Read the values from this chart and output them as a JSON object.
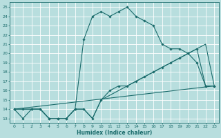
{
  "xlabel": "Humidex (Indice chaleur)",
  "bg_color": "#b8dede",
  "line_color": "#1a6b6b",
  "grid_color": "#d0ecec",
  "xlim": [
    -0.5,
    23.5
  ],
  "ylim": [
    12.5,
    25.5
  ],
  "xticks": [
    0,
    1,
    2,
    3,
    4,
    5,
    6,
    7,
    8,
    9,
    10,
    11,
    12,
    13,
    14,
    15,
    16,
    17,
    18,
    19,
    20,
    21,
    22,
    23
  ],
  "yticks": [
    13,
    14,
    15,
    16,
    17,
    18,
    19,
    20,
    21,
    22,
    23,
    24,
    25
  ],
  "line1_x": [
    0,
    1,
    2,
    3,
    4,
    5,
    6,
    7,
    8,
    9,
    10,
    11,
    12,
    13,
    14,
    15,
    16,
    17,
    18,
    19,
    20,
    21,
    22,
    23
  ],
  "line1_y": [
    14,
    13,
    14,
    14,
    13,
    13,
    13,
    14,
    21.5,
    24,
    24.5,
    24,
    24.5,
    25,
    24,
    23.5,
    23,
    21,
    20.5,
    20.5,
    20,
    19,
    16.5,
    16.5
  ],
  "line2_x": [
    0,
    1,
    2,
    3,
    4,
    5,
    6,
    7,
    8,
    9,
    10,
    11,
    12,
    13,
    14,
    15,
    16,
    17,
    18,
    19,
    20,
    21,
    22,
    23
  ],
  "line2_y": [
    14,
    14,
    14,
    14,
    13,
    13,
    13,
    14,
    14,
    13,
    15,
    16,
    16.5,
    16.5,
    17,
    17.5,
    18,
    18.5,
    19,
    19.5,
    20,
    20.5,
    16.5,
    16.5
  ],
  "line3_x": [
    0,
    23
  ],
  "line3_y": [
    14,
    16.5
  ],
  "line4_x": [
    0,
    1,
    2,
    3,
    4,
    5,
    6,
    7,
    8,
    9,
    10,
    11,
    12,
    13,
    14,
    15,
    16,
    17,
    18,
    19,
    20,
    21,
    22,
    23
  ],
  "line4_y": [
    14,
    14,
    14,
    14,
    13,
    13,
    13,
    14,
    14,
    13,
    15,
    15.5,
    16,
    16.5,
    17,
    17.5,
    18,
    18.5,
    19,
    19.5,
    20,
    20.5,
    21,
    16.5
  ]
}
